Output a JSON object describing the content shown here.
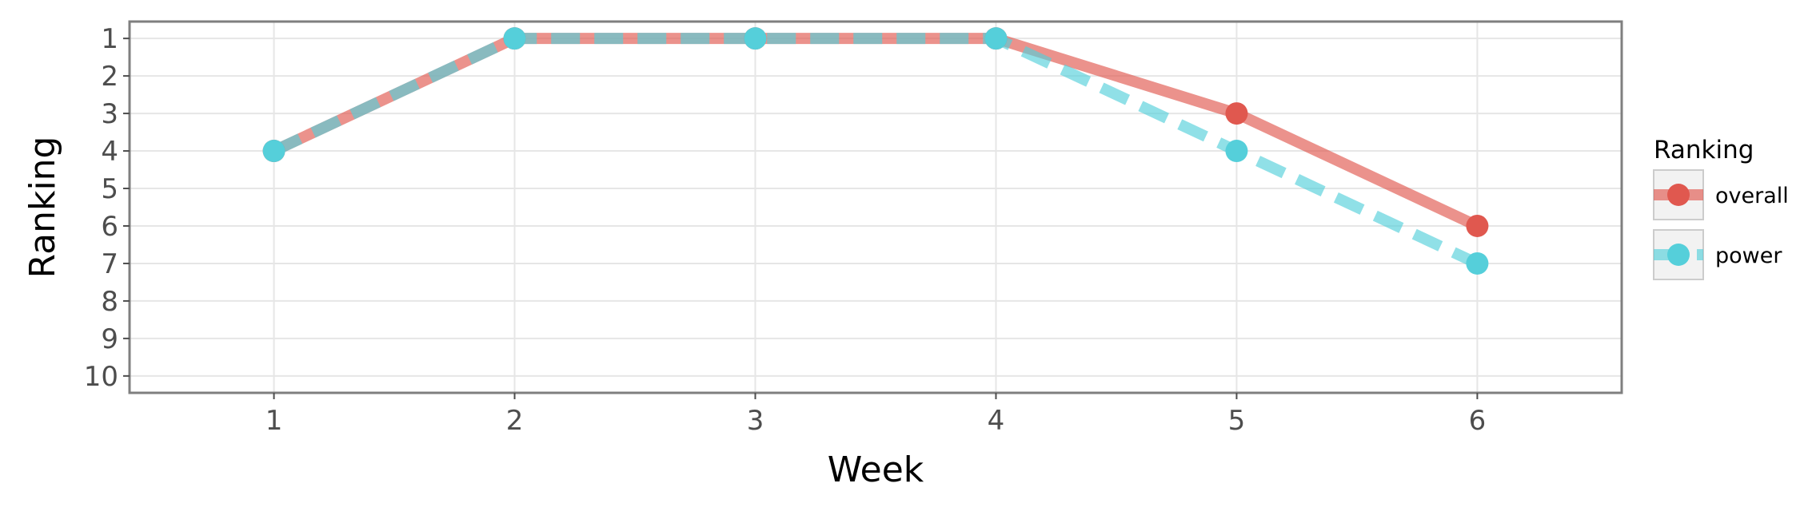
{
  "chart_data": {
    "type": "line",
    "xlabel": "Week",
    "ylabel": "Ranking",
    "x": [
      1,
      2,
      3,
      4,
      5,
      6
    ],
    "xlim": [
      0.4,
      6.6
    ],
    "ylim": [
      10.45,
      0.55
    ],
    "y_reversed": true,
    "x_ticks": [
      "1",
      "2",
      "3",
      "4",
      "5",
      "6"
    ],
    "y_ticks": [
      "1",
      "2",
      "3",
      "4",
      "5",
      "6",
      "7",
      "8",
      "9",
      "10"
    ],
    "grid": true,
    "legend": {
      "title": "Ranking",
      "position": "right"
    },
    "series": [
      {
        "name": "overall",
        "values": [
          4,
          1,
          1,
          1,
          3,
          6
        ],
        "color": "#E0584F",
        "line_style": "solid"
      },
      {
        "name": "power",
        "values": [
          4,
          1,
          1,
          1,
          4,
          7
        ],
        "color": "#55CFDA",
        "line_style": "dashed"
      }
    ]
  },
  "colors": {
    "panel_background": "#ffffff",
    "panel_border": "#7f7f7f",
    "grid": "#e6e6e6",
    "tick_text": "#4d4d4d",
    "title_text": "#000000"
  }
}
